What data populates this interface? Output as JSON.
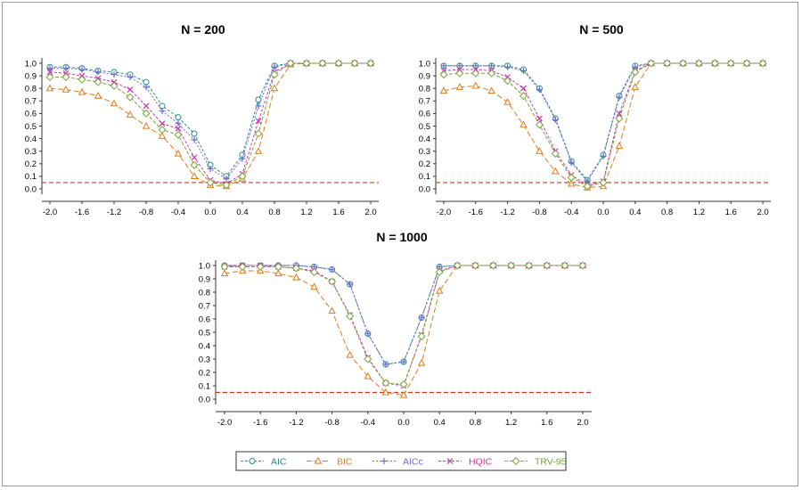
{
  "chart_data": [
    {
      "type": "line",
      "title": "N = 200",
      "x": [
        -2.0,
        -1.8,
        -1.6,
        -1.4,
        -1.2,
        -1.0,
        -0.8,
        -0.6,
        -0.4,
        -0.2,
        0.0,
        0.2,
        0.4,
        0.6,
        0.8,
        1.0,
        1.2,
        1.4,
        1.6,
        1.8,
        2.0
      ],
      "xticks": [
        "-2.0",
        "-1.6",
        "-1.2",
        "-0.8",
        "-0.4",
        "0.0",
        "0.4",
        "0.8",
        "1.2",
        "1.6",
        "2.0"
      ],
      "yticks": [
        "0.0",
        "0.1",
        "0.2",
        "0.3",
        "0.4",
        "0.5",
        "0.6",
        "0.7",
        "0.8",
        "0.9",
        "1.0"
      ],
      "xlim": [
        -2.1,
        2.1
      ],
      "ylim": [
        0,
        1
      ],
      "reference_line": 0.05,
      "series": [
        {
          "name": "AIC",
          "values": [
            0.97,
            0.97,
            0.96,
            0.94,
            0.93,
            0.91,
            0.85,
            0.66,
            0.57,
            0.44,
            0.19,
            0.1,
            0.27,
            0.71,
            0.98,
            1.0,
            1.0,
            1.0,
            1.0,
            1.0,
            1.0
          ]
        },
        {
          "name": "BIC",
          "values": [
            0.8,
            0.79,
            0.77,
            0.74,
            0.68,
            0.59,
            0.5,
            0.42,
            0.28,
            0.1,
            0.03,
            0.02,
            0.08,
            0.3,
            0.8,
            0.99,
            1.0,
            1.0,
            1.0,
            1.0,
            1.0
          ]
        },
        {
          "name": "AICc",
          "values": [
            0.96,
            0.96,
            0.95,
            0.93,
            0.91,
            0.89,
            0.81,
            0.62,
            0.52,
            0.39,
            0.16,
            0.08,
            0.24,
            0.66,
            0.97,
            1.0,
            1.0,
            1.0,
            1.0,
            1.0,
            1.0
          ]
        },
        {
          "name": "HQIC",
          "values": [
            0.93,
            0.92,
            0.9,
            0.88,
            0.85,
            0.79,
            0.66,
            0.52,
            0.48,
            0.25,
            0.07,
            0.04,
            0.12,
            0.54,
            0.93,
            1.0,
            1.0,
            1.0,
            1.0,
            1.0,
            1.0
          ]
        },
        {
          "name": "TRV-95",
          "values": [
            0.89,
            0.89,
            0.87,
            0.85,
            0.82,
            0.73,
            0.6,
            0.47,
            0.43,
            0.19,
            0.05,
            0.03,
            0.1,
            0.44,
            0.91,
            1.0,
            1.0,
            1.0,
            1.0,
            1.0,
            1.0
          ]
        }
      ]
    },
    {
      "type": "line",
      "title": "N = 500",
      "x": [
        -2.0,
        -1.8,
        -1.6,
        -1.4,
        -1.2,
        -1.0,
        -0.8,
        -0.6,
        -0.4,
        -0.2,
        0.0,
        0.2,
        0.4,
        0.6,
        0.8,
        1.0,
        1.2,
        1.4,
        1.6,
        1.8,
        2.0
      ],
      "xticks": [
        "-2.0",
        "-1.6",
        "-1.2",
        "-0.8",
        "-0.4",
        "0.0",
        "0.4",
        "0.8",
        "1.2",
        "1.6",
        "2.0"
      ],
      "yticks": [
        "0.0",
        "0.1",
        "0.2",
        "0.3",
        "0.4",
        "0.5",
        "0.6",
        "0.7",
        "0.8",
        "0.9",
        "1.0"
      ],
      "xlim": [
        -2.1,
        2.1
      ],
      "ylim": [
        0,
        1
      ],
      "reference_line": 0.05,
      "series": [
        {
          "name": "AIC",
          "values": [
            0.98,
            0.98,
            0.98,
            0.98,
            0.98,
            0.95,
            0.8,
            0.56,
            0.22,
            0.07,
            0.27,
            0.74,
            0.98,
            1.0,
            1.0,
            1.0,
            1.0,
            1.0,
            1.0,
            1.0,
            1.0
          ]
        },
        {
          "name": "BIC",
          "values": [
            0.78,
            0.81,
            0.82,
            0.78,
            0.69,
            0.51,
            0.3,
            0.14,
            0.04,
            0.01,
            0.02,
            0.34,
            0.81,
            1.0,
            1.0,
            1.0,
            1.0,
            1.0,
            1.0,
            1.0,
            1.0
          ]
        },
        {
          "name": "AICc",
          "values": [
            0.98,
            0.98,
            0.98,
            0.98,
            0.97,
            0.94,
            0.79,
            0.55,
            0.21,
            0.06,
            0.26,
            0.73,
            0.97,
            1.0,
            1.0,
            1.0,
            1.0,
            1.0,
            1.0,
            1.0,
            1.0
          ]
        },
        {
          "name": "HQIC",
          "values": [
            0.94,
            0.95,
            0.95,
            0.94,
            0.89,
            0.8,
            0.56,
            0.3,
            0.11,
            0.03,
            0.06,
            0.6,
            0.94,
            1.0,
            1.0,
            1.0,
            1.0,
            1.0,
            1.0,
            1.0,
            1.0
          ]
        },
        {
          "name": "TRV-95",
          "values": [
            0.91,
            0.92,
            0.92,
            0.92,
            0.86,
            0.74,
            0.51,
            0.28,
            0.09,
            0.02,
            0.05,
            0.56,
            0.93,
            1.0,
            1.0,
            1.0,
            1.0,
            1.0,
            1.0,
            1.0,
            1.0
          ]
        }
      ]
    },
    {
      "type": "line",
      "title": "N = 1000",
      "x": [
        -2.0,
        -1.8,
        -1.6,
        -1.4,
        -1.2,
        -1.0,
        -0.8,
        -0.6,
        -0.4,
        -0.2,
        0.0,
        0.2,
        0.4,
        0.6,
        0.8,
        1.0,
        1.2,
        1.4,
        1.6,
        1.8,
        2.0
      ],
      "xticks": [
        "-2.0",
        "-1.6",
        "-1.2",
        "-0.8",
        "-0.4",
        "0.0",
        "0.4",
        "0.8",
        "1.2",
        "1.6",
        "2.0"
      ],
      "yticks": [
        "0.0",
        "0.1",
        "0.2",
        "0.3",
        "0.4",
        "0.5",
        "0.6",
        "0.7",
        "0.8",
        "0.9",
        "1.0"
      ],
      "xlim": [
        -2.1,
        2.1
      ],
      "ylim": [
        0,
        1
      ],
      "reference_line": 0.05,
      "series": [
        {
          "name": "AIC",
          "values": [
            1.0,
            1.0,
            1.0,
            1.0,
            1.0,
            0.99,
            0.97,
            0.86,
            0.49,
            0.26,
            0.28,
            0.61,
            0.99,
            1.0,
            1.0,
            1.0,
            1.0,
            1.0,
            1.0,
            1.0,
            1.0
          ]
        },
        {
          "name": "BIC",
          "values": [
            0.94,
            0.96,
            0.96,
            0.94,
            0.91,
            0.84,
            0.66,
            0.33,
            0.17,
            0.05,
            0.03,
            0.27,
            0.81,
            1.0,
            1.0,
            1.0,
            1.0,
            1.0,
            1.0,
            1.0,
            1.0
          ]
        },
        {
          "name": "AICc",
          "values": [
            1.0,
            1.0,
            1.0,
            1.0,
            1.0,
            0.99,
            0.97,
            0.86,
            0.49,
            0.26,
            0.28,
            0.61,
            0.99,
            1.0,
            1.0,
            1.0,
            1.0,
            1.0,
            1.0,
            1.0,
            1.0
          ]
        },
        {
          "name": "HQIC",
          "values": [
            0.99,
            1.0,
            1.0,
            0.99,
            0.98,
            0.96,
            0.88,
            0.63,
            0.31,
            0.12,
            0.1,
            0.48,
            0.96,
            1.0,
            1.0,
            1.0,
            1.0,
            1.0,
            1.0,
            1.0,
            1.0
          ]
        },
        {
          "name": "TRV-95",
          "values": [
            0.99,
            0.99,
            0.99,
            0.99,
            0.98,
            0.95,
            0.88,
            0.62,
            0.3,
            0.12,
            0.11,
            0.47,
            0.95,
            1.0,
            1.0,
            1.0,
            1.0,
            1.0,
            1.0,
            1.0,
            1.0
          ]
        }
      ]
    }
  ],
  "legend": {
    "placement": "bottom-center",
    "items": [
      {
        "label": "AIC",
        "color": "#2b8a8a",
        "marker": "circle"
      },
      {
        "label": "BIC",
        "color": "#e07b1a",
        "marker": "triangle"
      },
      {
        "label": "AICc",
        "color": "#6a6ad0",
        "marker": "plus"
      },
      {
        "label": "HQIC",
        "color": "#cc33aa",
        "marker": "x"
      },
      {
        "label": "TRV-95",
        "color": "#77a33a",
        "marker": "diamond"
      }
    ]
  },
  "colors": {
    "reference_line": "#c0392b",
    "axis": "#333333"
  }
}
